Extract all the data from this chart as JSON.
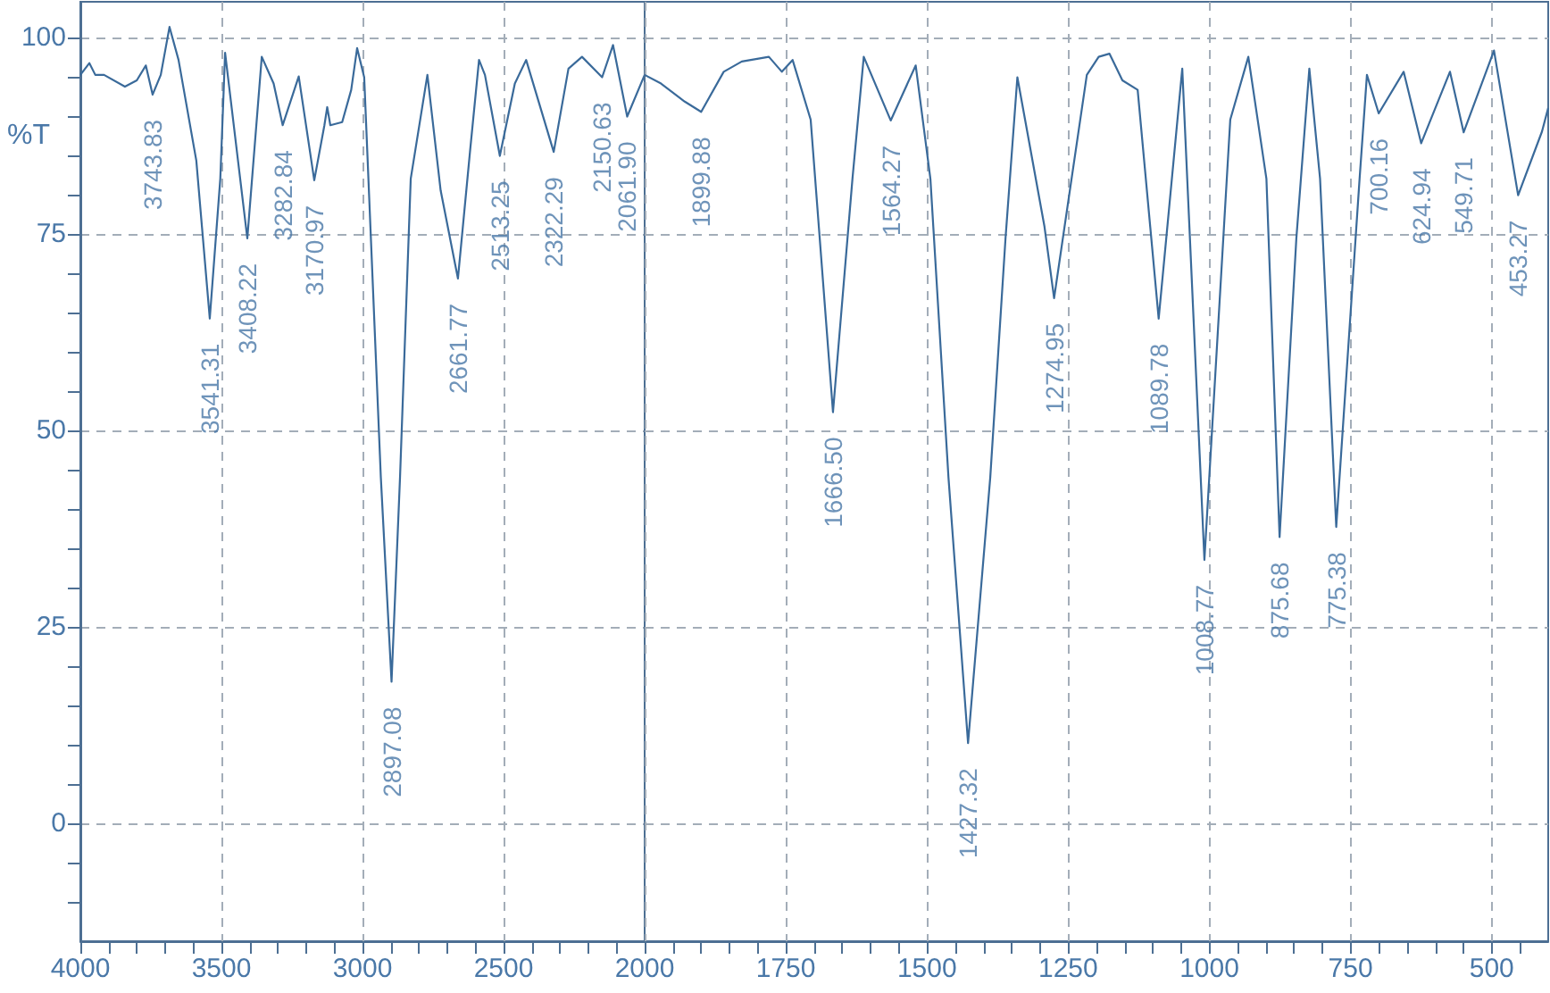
{
  "chart_data": [
    {
      "type": "line",
      "ylabel": "%T",
      "grid": true,
      "x": [
        4000,
        3968,
        3947,
        3916,
        3842,
        3800,
        3768,
        3743.83,
        3715,
        3684,
        3652,
        3589,
        3541.31,
        3504,
        3487,
        3408.22,
        3357,
        3315,
        3282.84,
        3226,
        3170.97,
        3135,
        3125,
        3114,
        3072,
        3040,
        3019,
        2994,
        2935,
        2897.08,
        2867,
        2829,
        2770,
        2723,
        2661.77,
        2618,
        2587,
        2566,
        2513.25,
        2460,
        2420,
        2322.29,
        2270,
        2222,
        2150.63,
        2112,
        2061.9,
        2000
      ],
      "series": [
        {
          "color": "#3a6a9a",
          "values": [
            95.2,
            96.7,
            95.2,
            95.2,
            93.7,
            94.5,
            96.4,
            92.7,
            95.2,
            101.3,
            97.1,
            84.3,
            64.2,
            82,
            98,
            74.4,
            97.5,
            94.1,
            88.8,
            95,
            81.8,
            88.8,
            91.1,
            88.8,
            89.2,
            93.3,
            98.6,
            94.9,
            44,
            18,
            44,
            82,
            95.2,
            80.5,
            69.3,
            85.8,
            97.1,
            95.2,
            84.9,
            94.1,
            97.1,
            85.4,
            96,
            97.5,
            94.9,
            99,
            89.9,
            95.2
          ]
        }
      ],
      "xlim": [
        4000,
        2000
      ],
      "ylim": [
        -15,
        104.5
      ],
      "xticks": [
        4000,
        {
          "value": 3900,
          "label": null
        },
        {
          "value": 3800,
          "label": null
        },
        {
          "value": 3700,
          "label": null
        },
        {
          "value": 3600,
          "label": null
        },
        3500,
        {
          "value": 3400,
          "label": null
        },
        {
          "value": 3300,
          "label": null
        },
        {
          "value": 3200,
          "label": null
        },
        {
          "value": 3100,
          "label": null
        },
        3000,
        {
          "value": 2900,
          "label": null
        },
        {
          "value": 2800,
          "label": null
        },
        {
          "value": 2700,
          "label": null
        },
        {
          "value": 2600,
          "label": null
        },
        2500,
        {
          "value": 2400,
          "label": null
        },
        {
          "value": 2300,
          "label": null
        },
        {
          "value": 2200,
          "label": null
        },
        {
          "value": 2100,
          "label": null
        }
      ],
      "yticks": [
        {
          "value": -10,
          "label": null
        },
        {
          "value": -5,
          "label": null
        },
        0,
        {
          "value": 5,
          "label": null
        },
        {
          "value": 10,
          "label": null
        },
        {
          "value": 15,
          "label": null
        },
        {
          "value": 20,
          "label": null
        },
        25,
        {
          "value": 30,
          "label": null
        },
        {
          "value": 35,
          "label": null
        },
        {
          "value": 40,
          "label": null
        },
        {
          "value": 45,
          "label": null
        },
        50,
        {
          "value": 55,
          "label": null
        },
        {
          "value": 60,
          "label": null
        },
        {
          "value": 65,
          "label": null
        },
        {
          "value": 70,
          "label": null
        },
        75,
        {
          "value": 80,
          "label": null
        },
        {
          "value": 85,
          "label": null
        },
        {
          "value": 90,
          "label": null
        },
        {
          "value": 95,
          "label": null
        },
        100
      ],
      "annotations": [
        {
          "text": "3743.83",
          "x": 3743.83,
          "y": 92.7
        },
        {
          "text": "3541.31",
          "x": 3541.31,
          "y": 64.2
        },
        {
          "text": "3408.22",
          "x": 3408.22,
          "y": 74.4
        },
        {
          "text": "3282.84",
          "x": 3282.84,
          "y": 88.8
        },
        {
          "text": "3170.97",
          "x": 3170.97,
          "y": 81.8
        },
        {
          "text": "2897.08",
          "x": 2897.08,
          "y": 18
        },
        {
          "text": "2661.77",
          "x": 2661.77,
          "y": 69.3
        },
        {
          "text": "2513.25",
          "x": 2513.25,
          "y": 84.9
        },
        {
          "text": "2322.29",
          "x": 2322.29,
          "y": 85.4
        },
        {
          "text": "2150.63",
          "x": 2150.63,
          "y": 94.9
        },
        {
          "text": "2061.90",
          "x": 2061.9,
          "y": 89.9
        }
      ]
    },
    {
      "type": "line",
      "grid": true,
      "tick_labels": "x",
      "x": [
        2000,
        1971,
        1929,
        1899.88,
        1860,
        1828,
        1780,
        1757,
        1738,
        1706,
        1666.5,
        1632,
        1612,
        1564.27,
        1520,
        1494,
        1462,
        1427.32,
        1388,
        1361,
        1340,
        1292,
        1274.95,
        1244,
        1217,
        1196,
        1177,
        1154,
        1127,
        1089.78,
        1048,
        1008.77,
        963,
        931,
        899,
        875.68,
        846,
        823,
        804,
        775.38,
        734,
        721,
        700.16,
        656,
        624.94,
        574,
        549.71,
        496,
        453.27,
        411,
        400
      ],
      "series": [
        {
          "color": "#3a6a9a",
          "values": [
            95.2,
            94.1,
            91.8,
            90.5,
            95.6,
            96.9,
            97.5,
            95.6,
            97.1,
            89.5,
            52.3,
            82,
            97.5,
            89.4,
            96.4,
            82,
            44,
            10.2,
            44,
            74.4,
            94.9,
            75.9,
            66.8,
            82,
            95.2,
            97.5,
            97.9,
            94.5,
            93.3,
            64.2,
            96,
            33.5,
            89.5,
            97.5,
            82,
            36.4,
            74.4,
            96,
            82,
            37.7,
            82,
            95.2,
            90.3,
            95.6,
            86.5,
            95.6,
            87.9,
            98.3,
            79.9,
            88,
            91
          ]
        }
      ],
      "xlim": [
        2000,
        400
      ],
      "ylim": [
        -15,
        104.5
      ],
      "xticks": [
        2000,
        {
          "value": 1950,
          "label": null
        },
        {
          "value": 1900,
          "label": null
        },
        {
          "value": 1850,
          "label": null
        },
        {
          "value": 1800,
          "label": null
        },
        1750,
        {
          "value": 1700,
          "label": null
        },
        {
          "value": 1650,
          "label": null
        },
        {
          "value": 1600,
          "label": null
        },
        {
          "value": 1550,
          "label": null
        },
        1500,
        {
          "value": 1450,
          "label": null
        },
        {
          "value": 1400,
          "label": null
        },
        {
          "value": 1350,
          "label": null
        },
        {
          "value": 1300,
          "label": null
        },
        1250,
        {
          "value": 1200,
          "label": null
        },
        {
          "value": 1150,
          "label": null
        },
        {
          "value": 1100,
          "label": null
        },
        {
          "value": 1050,
          "label": null
        },
        1000,
        {
          "value": 950,
          "label": null
        },
        {
          "value": 900,
          "label": null
        },
        {
          "value": 850,
          "label": null
        },
        {
          "value": 800,
          "label": null
        },
        750,
        {
          "value": 700,
          "label": null
        },
        {
          "value": 650,
          "label": null
        },
        {
          "value": 600,
          "label": null
        },
        {
          "value": 550,
          "label": null
        },
        500,
        {
          "value": 450,
          "label": null
        }
      ],
      "yticks": [
        0,
        25,
        50,
        75,
        100
      ],
      "annotations": [
        {
          "text": "1899.88",
          "x": 1899.88,
          "y": 90.5
        },
        {
          "text": "1666.50",
          "x": 1666.5,
          "y": 52.3
        },
        {
          "text": "1564.27",
          "x": 1564.27,
          "y": 89.4
        },
        {
          "text": "1427.32",
          "x": 1427.32,
          "y": 10.2
        },
        {
          "text": "1274.95",
          "x": 1274.95,
          "y": 66.8
        },
        {
          "text": "1089.78",
          "x": 1089.78,
          "y": 64.2
        },
        {
          "text": "1008.77",
          "x": 1008.77,
          "y": 33.5
        },
        {
          "text": "875.68",
          "x": 875.68,
          "y": 36.4
        },
        {
          "text": "775.38",
          "x": 775.38,
          "y": 37.7
        },
        {
          "text": "700.16",
          "x": 700.16,
          "y": 90.3
        },
        {
          "text": "624.94",
          "x": 624.94,
          "y": 86.5
        },
        {
          "text": "549.71",
          "x": 549.71,
          "y": 87.9
        },
        {
          "text": "453.27",
          "x": 453.27,
          "y": 79.9
        }
      ]
    }
  ]
}
